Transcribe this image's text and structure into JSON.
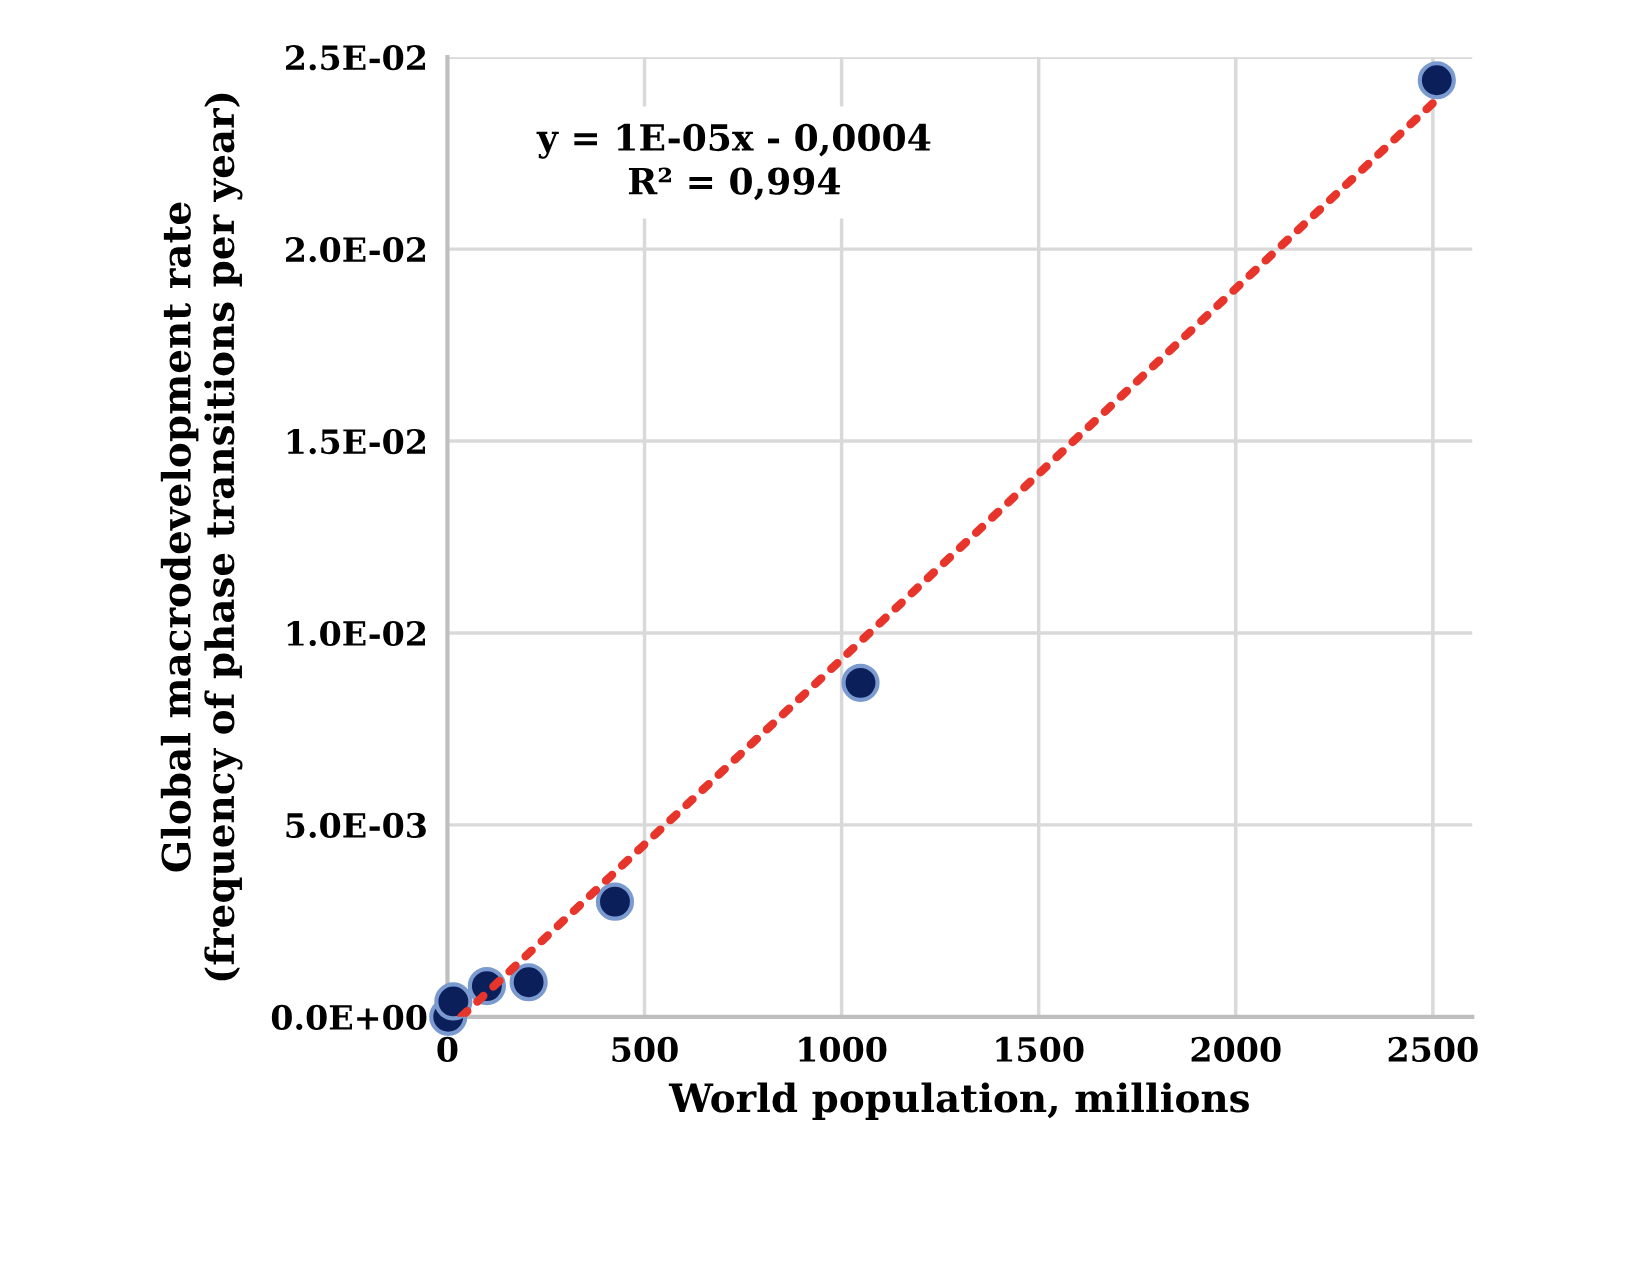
{
  "chart_data": {
    "type": "scatter",
    "xlabel": "World population, millions",
    "ylabel": "Global macrodevelopment rate\n(frequency of phase transitions per year)",
    "annotations": [
      "y = 1E-05x - 0,0004\nR² = 0,994"
    ],
    "series": [
      {
        "color": "#0b1f5a",
        "marker": "circle",
        "x": [
          2,
          15,
          100,
          206,
          425,
          1048,
          2510
        ],
        "values": [
          0.0,
          0.0004,
          0.0008,
          0.0009,
          0.003,
          0.0087,
          0.0244
        ]
      },
      {
        "type": "line",
        "color": "#e8352b",
        "line_style": "dotted",
        "x": [
          35,
          2500
        ],
        "values": [
          0.0,
          0.0238
        ]
      }
    ],
    "xlim": [
      0,
      2600
    ],
    "xticks": [
      0,
      500,
      1000,
      1500,
      2000,
      2500
    ],
    "ylim": [
      0,
      0.025
    ],
    "yticks": [
      {
        "value": 0,
        "label": "0.0E+00"
      },
      {
        "value": 0.005,
        "label": "5.0E-03"
      },
      {
        "value": 0.01,
        "label": "1.0E-02"
      },
      {
        "value": 0.015,
        "label": "1.5E-02"
      },
      {
        "value": 0.02,
        "label": "2.0E-02"
      },
      {
        "value": 0.025,
        "label": "2.5E-02"
      }
    ],
    "grid": true
  }
}
